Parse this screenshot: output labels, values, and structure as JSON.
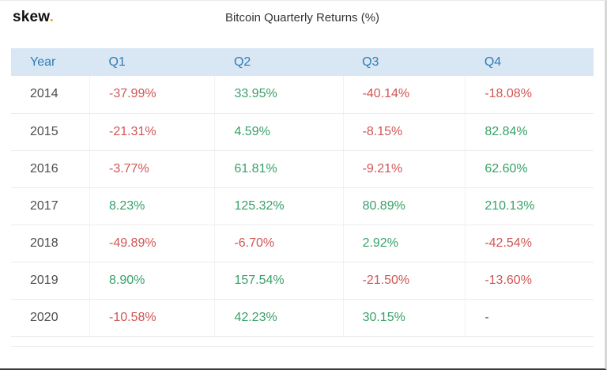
{
  "header": {
    "logo_text": "skew",
    "logo_dot": ".",
    "title": "Bitcoin Quarterly Returns (%)"
  },
  "colors": {
    "positive": "#38a169",
    "negative": "#d25555",
    "neutral": "#555555",
    "header_bg": "#d9e7f4",
    "header_text": "#2e7cb5"
  },
  "chart_data": {
    "type": "table",
    "title": "Bitcoin Quarterly Returns (%)",
    "columns": [
      "Year",
      "Q1",
      "Q2",
      "Q3",
      "Q4"
    ],
    "rows": [
      {
        "year": "2014",
        "values": [
          "-37.99%",
          "33.95%",
          "-40.14%",
          "-18.08%"
        ]
      },
      {
        "year": "2015",
        "values": [
          "-21.31%",
          "4.59%",
          "-8.15%",
          "82.84%"
        ]
      },
      {
        "year": "2016",
        "values": [
          "-3.77%",
          "61.81%",
          "-9.21%",
          "62.60%"
        ]
      },
      {
        "year": "2017",
        "values": [
          "8.23%",
          "125.32%",
          "80.89%",
          "210.13%"
        ]
      },
      {
        "year": "2018",
        "values": [
          "-49.89%",
          "-6.70%",
          "2.92%",
          "-42.54%"
        ]
      },
      {
        "year": "2019",
        "values": [
          "8.90%",
          "157.54%",
          "-21.50%",
          "-13.60%"
        ]
      },
      {
        "year": "2020",
        "values": [
          "-10.58%",
          "42.23%",
          "30.15%",
          "-"
        ]
      }
    ]
  }
}
